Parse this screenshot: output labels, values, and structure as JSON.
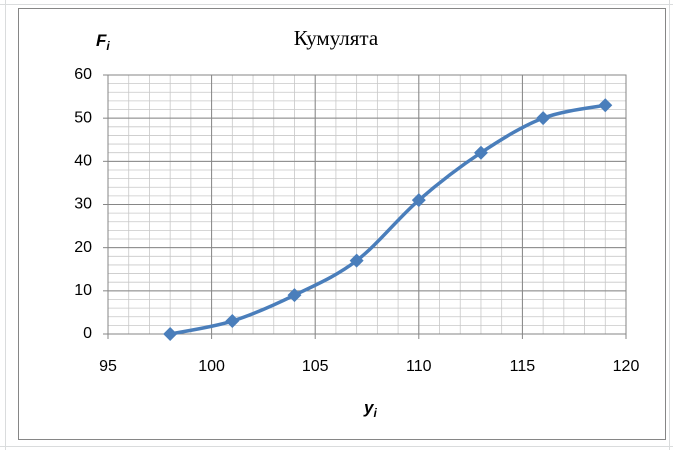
{
  "chart_data": {
    "type": "line",
    "title": "Кумулята",
    "y_label": {
      "text": "F",
      "sub": "i"
    },
    "x_label": {
      "text": "y",
      "sub": "i"
    },
    "x": [
      98,
      101,
      104,
      107,
      110,
      113,
      116,
      119
    ],
    "series": [
      {
        "color": "#4a7ebb",
        "values": [
          0,
          3,
          9,
          17,
          31,
          42,
          50,
          53
        ]
      }
    ],
    "xlim": [
      95,
      120
    ],
    "xticks": [
      95,
      100,
      105,
      110,
      115,
      120
    ],
    "ylim": [
      0,
      60
    ],
    "yticks": [
      0,
      10,
      20,
      30,
      40,
      50,
      60
    ],
    "grid": true,
    "minor_grid": {
      "x": 1,
      "y": 2
    },
    "smooth": true,
    "marker": "diamond"
  }
}
